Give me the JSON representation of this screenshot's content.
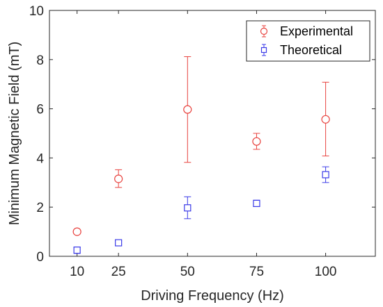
{
  "chart_data": {
    "type": "scatter",
    "xlabel": "Driving Frequency (Hz)",
    "ylabel": "Minimum Magnetic Field (mT)",
    "xticks": [
      {
        "value": 10,
        "label": "10"
      },
      {
        "value": 25,
        "label": "25"
      },
      {
        "value": 50,
        "label": "50"
      },
      {
        "value": 75,
        "label": "75"
      },
      {
        "value": 100,
        "label": "100"
      }
    ],
    "yticks": [
      {
        "value": 0,
        "label": "0"
      },
      {
        "value": 2,
        "label": "2"
      },
      {
        "value": 4,
        "label": "4"
      },
      {
        "value": 6,
        "label": "6"
      },
      {
        "value": 8,
        "label": "8"
      },
      {
        "value": 10,
        "label": "10"
      }
    ],
    "xlim": [
      0,
      118
    ],
    "ylim": [
      0,
      10
    ],
    "grid": false,
    "legend_position": "top-right",
    "series": [
      {
        "name": "Experimental",
        "marker": "circle",
        "color": "#e8423e",
        "points": [
          {
            "x": 10,
            "y": 1.0,
            "err_low": 0.95,
            "err_high": 1.05
          },
          {
            "x": 25,
            "y": 3.15,
            "err_low": 2.8,
            "err_high": 3.52
          },
          {
            "x": 50,
            "y": 5.97,
            "err_low": 3.82,
            "err_high": 8.12
          },
          {
            "x": 75,
            "y": 4.67,
            "err_low": 4.35,
            "err_high": 5.0
          },
          {
            "x": 100,
            "y": 5.57,
            "err_low": 4.08,
            "err_high": 7.08
          }
        ]
      },
      {
        "name": "Theoretical",
        "marker": "square",
        "color": "#3a3ae8",
        "points": [
          {
            "x": 10,
            "y": 0.25,
            "err_low": 0.12,
            "err_high": 0.38
          },
          {
            "x": 25,
            "y": 0.55,
            "err_low": 0.47,
            "err_high": 0.63
          },
          {
            "x": 50,
            "y": 1.97,
            "err_low": 1.53,
            "err_high": 2.42
          },
          {
            "x": 75,
            "y": 2.15,
            "err_low": 2.02,
            "err_high": 2.28
          },
          {
            "x": 100,
            "y": 3.32,
            "err_low": 3.0,
            "err_high": 3.64
          }
        ]
      }
    ]
  }
}
